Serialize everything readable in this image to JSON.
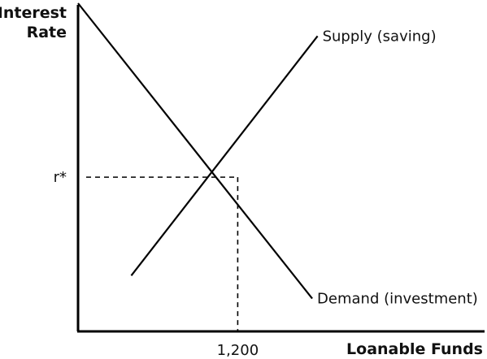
{
  "chart_data": {
    "type": "line",
    "title": "",
    "xlabel": "Loanable Funds",
    "ylabel_lines": [
      "Interest",
      "Rate"
    ],
    "xlim": [
      0,
      3000
    ],
    "ylim": [
      0,
      10
    ],
    "grid": false,
    "series": [
      {
        "name": "Supply (saving)",
        "color": "#000000",
        "x": [
          400,
          1800
        ],
        "y": [
          1.7,
          9.0
        ]
      },
      {
        "name": "Demand (investment)",
        "color": "#000000",
        "x": [
          0,
          1760
        ],
        "y": [
          10.0,
          1.0
        ]
      }
    ],
    "equilibrium": {
      "x": 1200,
      "y": 4.7,
      "x_label": "1,200",
      "y_label": "r*"
    }
  }
}
